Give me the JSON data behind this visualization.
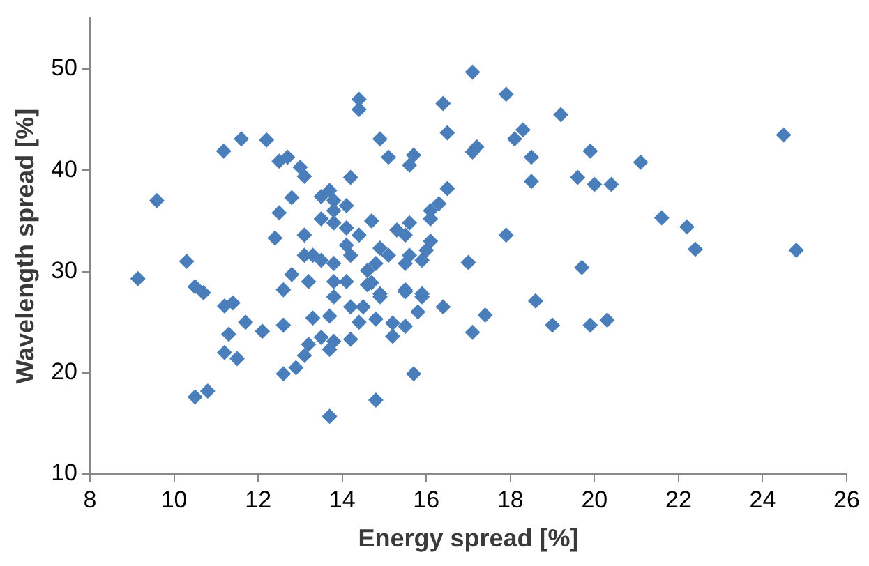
{
  "chart_data": {
    "type": "scatter",
    "xlabel": "Energy spread [%]",
    "ylabel": "Wavelength spread [%]",
    "xlim": [
      8,
      26
    ],
    "xticks": [
      8,
      10,
      12,
      14,
      16,
      18,
      20,
      22,
      24,
      26
    ],
    "ylim": [
      10,
      55
    ],
    "yticks": [
      10,
      20,
      30,
      40,
      50
    ],
    "grid": false,
    "legend": false,
    "marker": "diamond",
    "series": [
      {
        "color": "#4a7ebb",
        "x": [
          9.14,
          9.59,
          10.3,
          10.5,
          10.7,
          11.2,
          11.4,
          11.7,
          11.3,
          12.1,
          12.6,
          11.2,
          11.5,
          10.5,
          10.8,
          12.6,
          12.9,
          13.1,
          13.2,
          13.7,
          14.8,
          15.7,
          13.3,
          13.7,
          13.5,
          13.7,
          13.8,
          14.2,
          14.2,
          14.5,
          14.4,
          14.8,
          15.2,
          15.2,
          15.5,
          14.9,
          15.5,
          15.9,
          15.8,
          16.4,
          12.8,
          13.2,
          13.8,
          13.8,
          14.1,
          14.6,
          11.18,
          11.6,
          12.2,
          12.5,
          12.7,
          13.0,
          13.1,
          14.2,
          14.9,
          15.1,
          15.6,
          15.7,
          16.4,
          16.5,
          14.4,
          14.4,
          16.5,
          16.3,
          16.1,
          16.1,
          12.8,
          12.5,
          13.5,
          13.7,
          13.8,
          13.5,
          13.8,
          13.8,
          14.1,
          14.7,
          12.4,
          13.1,
          13.1,
          14.1,
          14.4,
          14.1,
          14.2,
          15.3,
          15.6,
          15.5,
          16.1,
          16.0,
          14.9,
          15.1,
          14.8,
          15.6,
          15.5,
          15.9,
          13.8,
          13.5,
          13.3,
          14.6,
          12.6,
          14.7,
          14.9,
          15.5,
          15.9,
          17.1,
          17.9,
          19.2,
          18.3,
          18.1,
          17.2,
          17.1,
          18.5,
          19.9,
          24.5,
          21.1,
          18.5,
          19.6,
          20.0,
          20.4,
          21.6,
          22.2,
          22.4,
          24.8,
          17.9,
          17.0,
          19.7,
          18.6,
          17.4,
          17.1,
          19.0,
          19.9,
          20.3
        ],
        "values": [
          29.3,
          37.0,
          31.0,
          28.5,
          27.9,
          26.6,
          26.9,
          25.0,
          23.8,
          24.1,
          24.7,
          22.0,
          21.4,
          17.6,
          18.2,
          19.9,
          20.5,
          21.7,
          22.8,
          15.7,
          17.3,
          19.9,
          25.4,
          25.6,
          23.5,
          22.3,
          23.1,
          23.3,
          26.5,
          26.5,
          25.0,
          25.3,
          24.9,
          23.6,
          24.6,
          27.5,
          28.0,
          27.5,
          26.0,
          26.5,
          29.7,
          29.0,
          29.0,
          27.5,
          29.0,
          28.7,
          41.9,
          43.1,
          43.0,
          40.9,
          41.3,
          40.3,
          39.4,
          39.3,
          43.1,
          41.3,
          40.5,
          41.5,
          46.6,
          43.7,
          47.0,
          46.0,
          38.2,
          36.7,
          36.0,
          35.2,
          37.3,
          35.8,
          37.4,
          38.0,
          37.0,
          35.2,
          36.0,
          34.8,
          36.5,
          35.0,
          33.3,
          33.6,
          31.6,
          34.3,
          33.6,
          32.6,
          31.6,
          34.1,
          34.8,
          33.6,
          33.0,
          32.1,
          32.3,
          31.6,
          30.8,
          31.6,
          30.8,
          31.1,
          30.8,
          31.1,
          31.6,
          30.1,
          28.2,
          28.9,
          27.8,
          28.2,
          27.8,
          49.7,
          47.5,
          45.5,
          44.0,
          43.1,
          42.3,
          41.8,
          41.3,
          41.9,
          43.5,
          40.8,
          38.9,
          39.3,
          38.6,
          38.6,
          35.3,
          34.4,
          32.2,
          32.1,
          33.6,
          30.9,
          30.4,
          27.1,
          25.7,
          24.0,
          24.7,
          24.7,
          25.2
        ]
      }
    ]
  }
}
